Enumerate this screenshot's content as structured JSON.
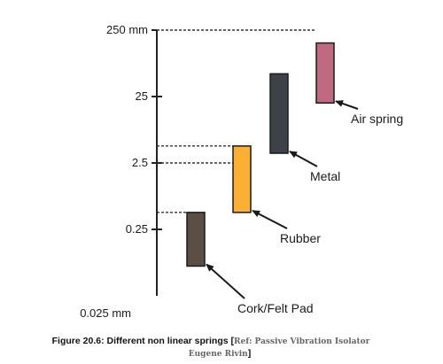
{
  "chart_data": {
    "type": "bar",
    "subtype": "floating-range",
    "y_scale": "log",
    "ylim": [
      0.025,
      250
    ],
    "y_ticks": [
      {
        "value": 250,
        "label": "250 mm"
      },
      {
        "value": 25,
        "label": "25"
      },
      {
        "value": 2.5,
        "label": "2.5"
      },
      {
        "value": 0.25,
        "label": "0.25"
      },
      {
        "value": 0.025,
        "label": "0.025 mm"
      }
    ],
    "series": [
      {
        "label": "Cork/Felt Pad",
        "low": 0.07,
        "high": 0.45,
        "color": "#5a4e45"
      },
      {
        "label": "Rubber",
        "low": 0.45,
        "high": 4.5,
        "color": "#fbb034"
      },
      {
        "label": "Metal",
        "low": 3.5,
        "high": 55,
        "color": "#3d4148"
      },
      {
        "label": "Air spring",
        "low": 20,
        "high": 160,
        "color": "#c06a82"
      }
    ],
    "reference_lines": [
      250,
      4.5,
      2.5,
      0.45
    ],
    "grid": false,
    "legend": "none"
  },
  "caption": {
    "main": "Figure 20.6: Different non linear springs ",
    "open_bracket": "[",
    "ref_line1": "Ref: Passive Vibration Isolator",
    "ref_line2": "Eugene Rivin",
    "close_bracket": "]"
  },
  "colors": {
    "axis": "#222222",
    "dash": "#333333",
    "bar_outline": "#1a1a1a"
  }
}
